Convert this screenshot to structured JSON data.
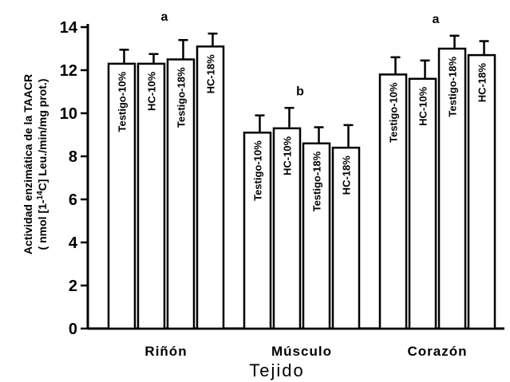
{
  "chart_data": {
    "type": "bar",
    "ylabel_line1": "Actividad enzimática de la TAACR",
    "ylabel_line2_pre": "( nmol [1-",
    "ylabel_line2_sup": "14",
    "ylabel_line2_post": "C] Leu./min/mg prot.)",
    "xlabel": "Tejido",
    "ylim": [
      0,
      14
    ],
    "yticks": [
      0,
      2,
      4,
      6,
      8,
      10,
      12,
      14
    ],
    "groups": [
      {
        "name": "Riñón",
        "significance": "a",
        "bars": [
          {
            "label": "Testigo-10%",
            "value": 12.3,
            "error": 0.65
          },
          {
            "label": "HC-10%",
            "value": 12.3,
            "error": 0.45
          },
          {
            "label": "Testigo-18%",
            "value": 12.5,
            "error": 0.9
          },
          {
            "label": "HC-18%",
            "value": 13.1,
            "error": 0.6
          }
        ]
      },
      {
        "name": "Músculo",
        "significance": "b",
        "bars": [
          {
            "label": "Testigo-10%",
            "value": 9.1,
            "error": 0.8
          },
          {
            "label": "HC-10%",
            "value": 9.3,
            "error": 0.95
          },
          {
            "label": "Testigo-18%",
            "value": 8.6,
            "error": 0.75
          },
          {
            "label": "HC-18%",
            "value": 8.4,
            "error": 1.05
          }
        ]
      },
      {
        "name": "Corazón",
        "significance": "a",
        "bars": [
          {
            "label": "Testigo-10%",
            "value": 11.8,
            "error": 0.8
          },
          {
            "label": "HC-10%",
            "value": 11.6,
            "error": 0.85
          },
          {
            "label": "Testigo-18%",
            "value": 13.0,
            "error": 0.6
          },
          {
            "label": "HC-18%",
            "value": 12.7,
            "error": 0.65
          }
        ]
      }
    ],
    "grid": false,
    "legend": "none"
  }
}
